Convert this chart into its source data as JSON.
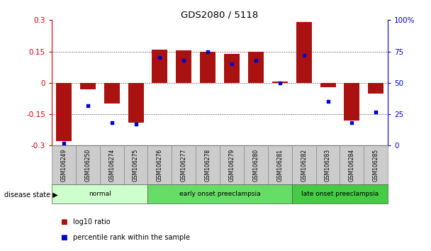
{
  "title": "GDS2080 / 5118",
  "samples": [
    "GSM106249",
    "GSM106250",
    "GSM106274",
    "GSM106275",
    "GSM106276",
    "GSM106277",
    "GSM106278",
    "GSM106279",
    "GSM106280",
    "GSM106281",
    "GSM106282",
    "GSM106283",
    "GSM106284",
    "GSM106285"
  ],
  "log10_ratio": [
    -0.28,
    -0.03,
    -0.1,
    -0.19,
    0.16,
    0.155,
    0.15,
    0.14,
    0.15,
    0.005,
    0.29,
    -0.02,
    -0.18,
    -0.05
  ],
  "percentile_rank": [
    2,
    32,
    18,
    17,
    70,
    68,
    75,
    65,
    68,
    50,
    72,
    35,
    18,
    27
  ],
  "groups": [
    {
      "label": "normal",
      "start": 0,
      "end": 4,
      "color": "#ccffcc"
    },
    {
      "label": "early onset preeclampsia",
      "start": 4,
      "end": 10,
      "color": "#66dd66"
    },
    {
      "label": "late onset preeclampsia",
      "start": 10,
      "end": 14,
      "color": "#44cc44"
    }
  ],
  "bar_color": "#aa1111",
  "dot_color": "#0000cc",
  "ylim": [
    -0.3,
    0.3
  ],
  "yticks_left": [
    -0.3,
    -0.15,
    0,
    0.15,
    0.3
  ],
  "yticks_right": [
    0,
    25,
    50,
    75,
    100
  ],
  "hline_color": "#cc0000",
  "dotted_color": "#333333",
  "bg_color": "#ffffff",
  "plot_bg": "#ffffff",
  "legend_items": [
    "log10 ratio",
    "percentile rank within the sample"
  ],
  "disease_state_label": "disease state"
}
